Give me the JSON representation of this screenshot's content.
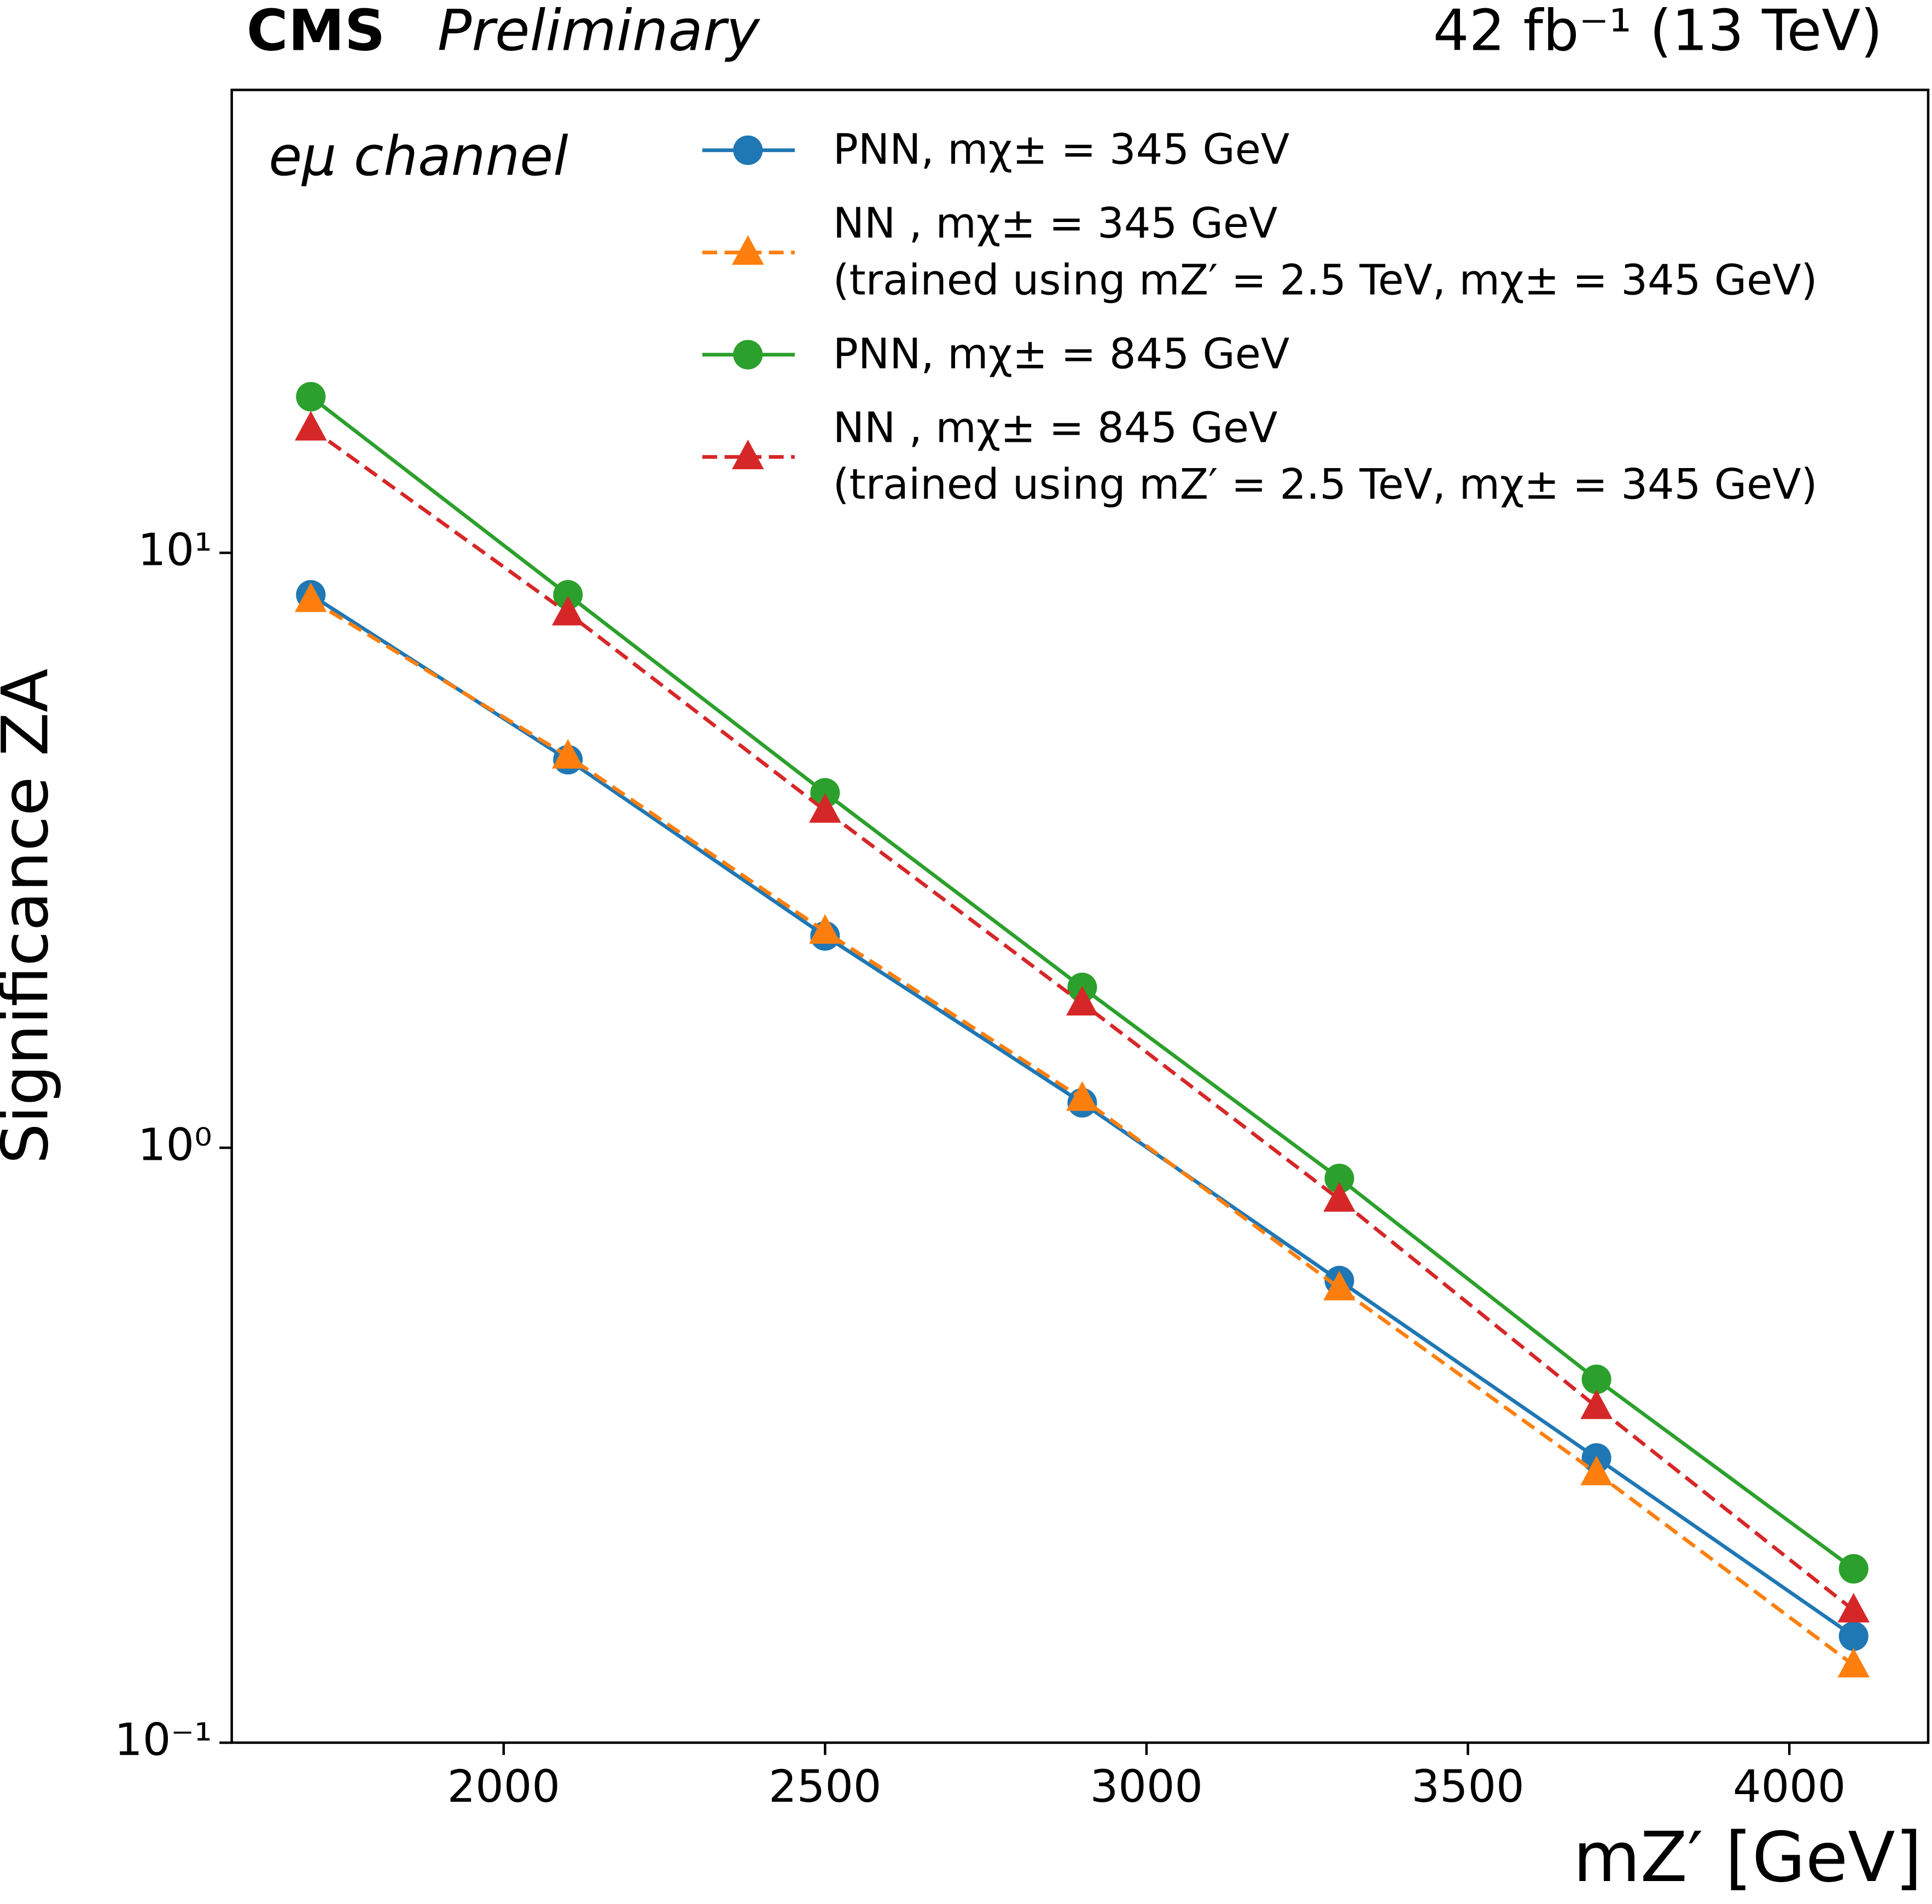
{
  "chart_data": {
    "type": "line",
    "title": "CMS",
    "subtitle": "Preliminary",
    "luminosity": "42 fb⁻¹ (13 TeV)",
    "annotation": "eμ channel",
    "xlabel": "mZ′ [GeV]",
    "ylabel": "Significance  ZA",
    "x": [
      1700,
      2100,
      2500,
      2900,
      3300,
      3700,
      4100
    ],
    "xlim": [
      1577,
      4216
    ],
    "xticks": [
      2000,
      2500,
      3000,
      3500,
      4000
    ],
    "ylim": [
      0.1,
      60
    ],
    "yscale": "log",
    "yticks": [
      {
        "value": 0.1,
        "label": "10⁻¹"
      },
      {
        "value": 1,
        "label": "10⁰"
      },
      {
        "value": 10,
        "label": "10¹"
      }
    ],
    "legend": "upper right",
    "series": [
      {
        "name": "PNN, mχ± = 345 GeV",
        "color": "#1f77b4",
        "marker": "circle",
        "linestyle": "solid",
        "values": [
          8.5,
          4.49,
          2.27,
          1.19,
          0.598,
          0.301,
          0.151
        ]
      },
      {
        "name": "NN , mχ± = 345 GeV\n(trained using mZ′ = 2.5 TeV, mχ± = 345 GeV)",
        "color": "#ff7f0e",
        "marker": "triangle",
        "linestyle": "dashed",
        "values": [
          8.34,
          4.55,
          2.31,
          1.21,
          0.581,
          0.284,
          0.135
        ]
      },
      {
        "name": "PNN, mχ± = 845 GeV",
        "color": "#2ca02c",
        "marker": "circle",
        "linestyle": "solid",
        "values": [
          18.3,
          8.5,
          3.95,
          1.86,
          0.888,
          0.408,
          0.196
        ]
      },
      {
        "name": "NN , mχ± = 845 GeV\n(trained using mZ′ = 2.5 TeV, mχ± = 345 GeV)",
        "color": "#d62728",
        "marker": "triangle",
        "linestyle": "dashed",
        "values": [
          16.2,
          7.92,
          3.69,
          1.75,
          0.819,
          0.367,
          0.167
        ]
      }
    ]
  }
}
